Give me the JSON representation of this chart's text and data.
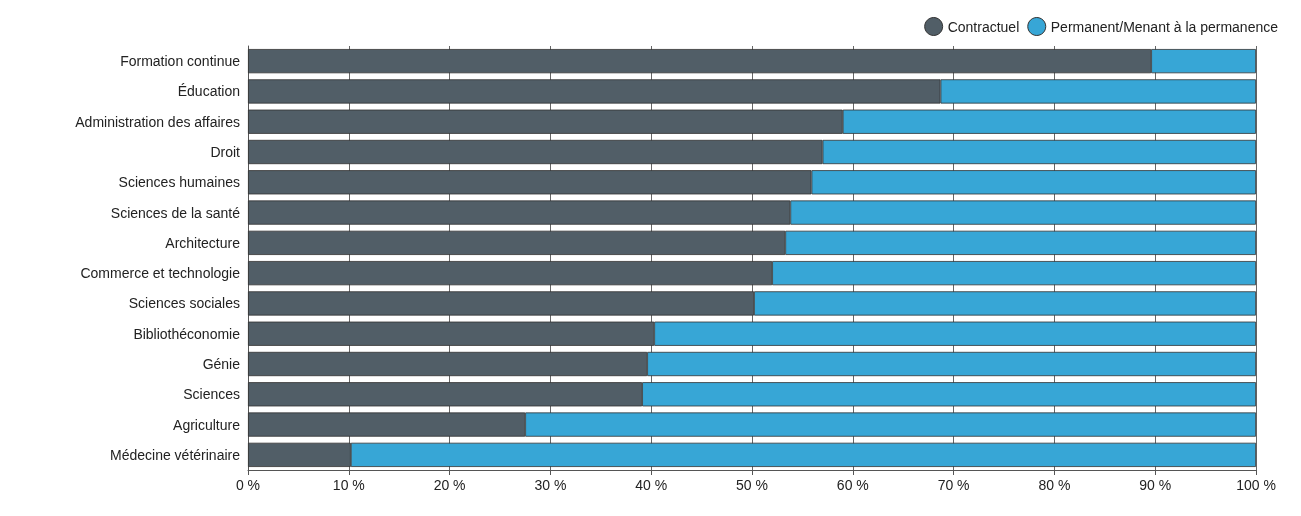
{
  "chart_data": {
    "type": "bar",
    "orientation": "horizontal",
    "stacked": true,
    "categories": [
      "Formation continue",
      "Éducation",
      "Administration des affaires",
      "Droit",
      "Sciences humaines",
      "Sciences de la santé",
      "Architecture",
      "Commerce et technologie",
      "Sciences sociales",
      "Bibliothéconomie",
      "Génie",
      "Sciences",
      "Agriculture",
      "Médecine vétérinaire"
    ],
    "series": [
      {
        "name": "Contractuel",
        "color": "#515e67",
        "values": [
          89.6,
          68.7,
          59.0,
          57.0,
          55.9,
          53.8,
          53.3,
          52.0,
          50.2,
          40.3,
          39.6,
          39.1,
          27.5,
          10.2
        ]
      },
      {
        "name": "Permanent/Menant à la permanence",
        "color": "#37a6d6",
        "values": [
          10.4,
          31.3,
          41.0,
          43.0,
          44.1,
          46.2,
          46.7,
          48.0,
          49.8,
          59.7,
          60.4,
          60.9,
          72.5,
          89.8
        ]
      }
    ],
    "xlim": [
      0,
      100
    ],
    "xticks": [
      {
        "value": 0,
        "label": "0 %"
      },
      {
        "value": 10,
        "label": "10 %"
      },
      {
        "value": 20,
        "label": "20 %"
      },
      {
        "value": 30,
        "label": "30 %"
      },
      {
        "value": 40,
        "label": "40 %"
      },
      {
        "value": 50,
        "label": "50 %"
      },
      {
        "value": 60,
        "label": "60 %"
      },
      {
        "value": 70,
        "label": "70 %"
      },
      {
        "value": 80,
        "label": "80 %"
      },
      {
        "value": 90,
        "label": "90 %"
      },
      {
        "value": 100,
        "label": "100 %"
      }
    ],
    "grid": "x",
    "legend": "top right"
  }
}
